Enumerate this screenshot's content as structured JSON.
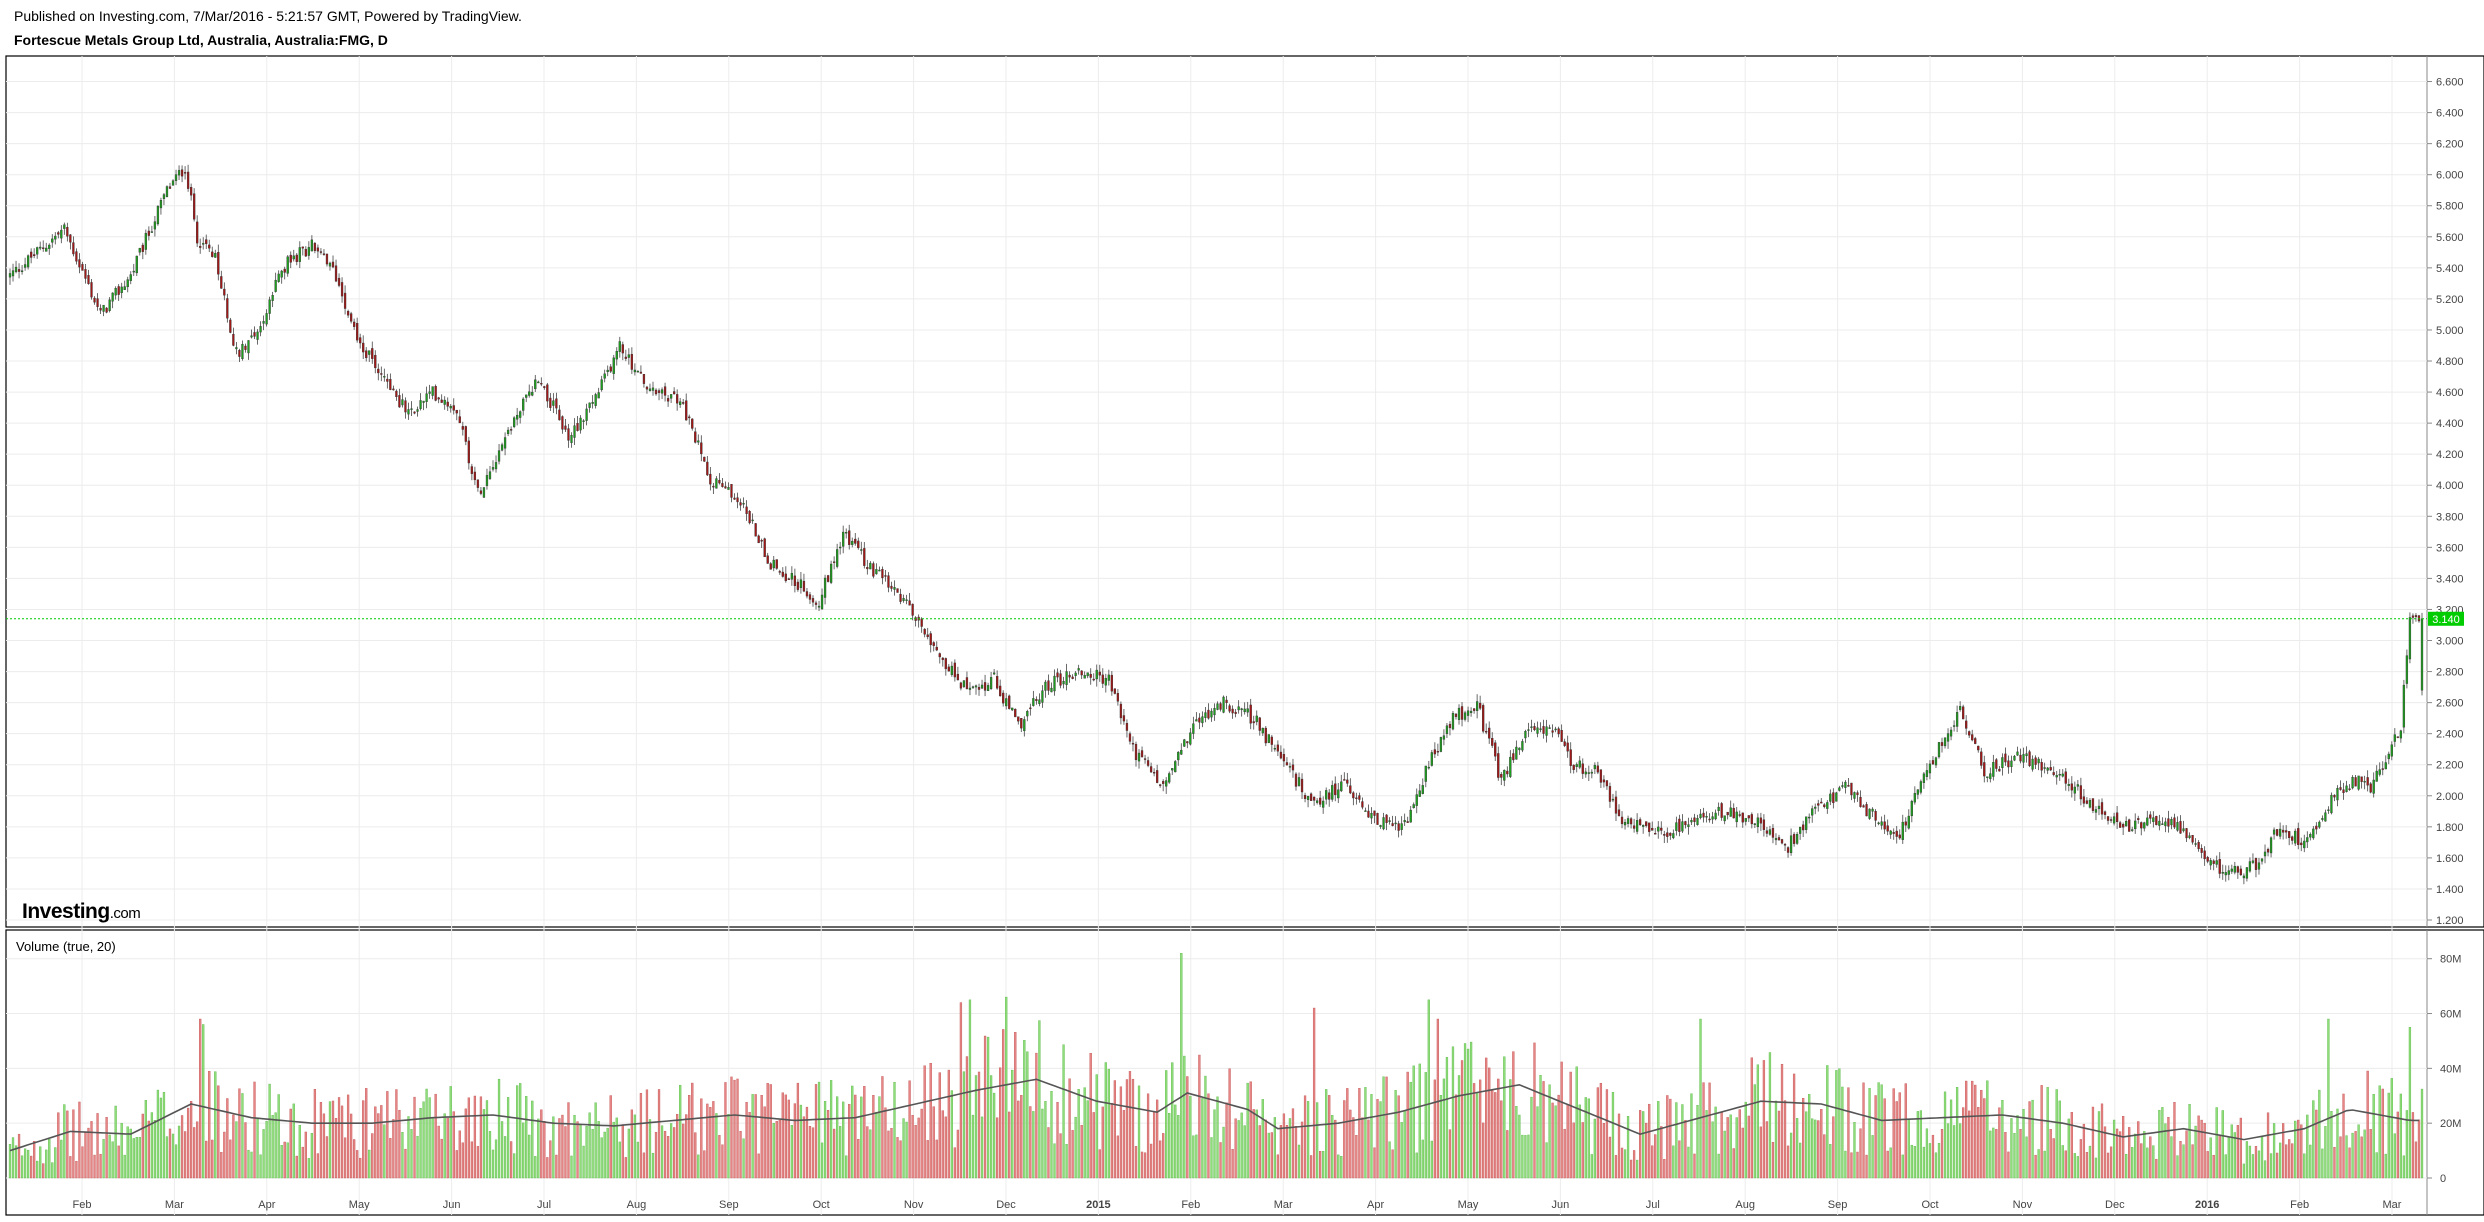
{
  "header": {
    "published": "Published on Investing.com, 7/Mar/2016 - 5:21:57 GMT, Powered by TradingView.",
    "symbol": "Fortescue Metals Group Ltd, Australia, Australia:FMG, D"
  },
  "logo": {
    "main": "Investing",
    "suffix": ".com"
  },
  "volume_panel": {
    "title": "Volume (true, 20)"
  },
  "colors": {
    "up": "#1e9e1e",
    "down": "#a01818",
    "vol_up": "#8fdc7a",
    "vol_down": "#e58585",
    "ma": "#555555",
    "last_price": "#00cc00"
  },
  "chart_data": [
    {
      "type": "candlestick",
      "ylim": [
        1.2,
        6.7
      ],
      "y_ticks": [
        "1.200",
        "1.400",
        "1.600",
        "1.800",
        "2.000",
        "2.200",
        "2.400",
        "2.600",
        "2.800",
        "3.000",
        "3.200",
        "3.400",
        "3.600",
        "3.800",
        "4.000",
        "4.200",
        "4.400",
        "4.600",
        "4.800",
        "5.000",
        "5.200",
        "5.400",
        "5.600",
        "5.800",
        "6.000",
        "6.200",
        "6.400",
        "6.600"
      ],
      "x_ticks": [
        "Feb",
        "Mar",
        "Apr",
        "May",
        "Jun",
        "Jul",
        "Aug",
        "Sep",
        "Oct",
        "Nov",
        "Dec",
        "2015",
        "Feb",
        "Mar",
        "Apr",
        "May",
        "Jun",
        "Jul",
        "Aug",
        "Sep",
        "Oct",
        "Nov",
        "Dec",
        "2016",
        "Feb",
        "Mar"
      ],
      "last_price": "3.140",
      "last_value": 3.14,
      "close_path": [
        [
          0,
          5.35
        ],
        [
          18,
          5.65
        ],
        [
          30,
          5.1
        ],
        [
          40,
          5.35
        ],
        [
          52,
          5.9
        ],
        [
          58,
          6.05
        ],
        [
          62,
          5.6
        ],
        [
          68,
          5.45
        ],
        [
          75,
          4.85
        ],
        [
          84,
          5.05
        ],
        [
          90,
          5.4
        ],
        [
          100,
          5.55
        ],
        [
          108,
          5.35
        ],
        [
          116,
          4.9
        ],
        [
          124,
          4.7
        ],
        [
          132,
          4.45
        ],
        [
          140,
          4.6
        ],
        [
          148,
          4.5
        ],
        [
          155,
          3.95
        ],
        [
          165,
          4.35
        ],
        [
          175,
          4.7
        ],
        [
          185,
          4.3
        ],
        [
          195,
          4.6
        ],
        [
          202,
          4.9
        ],
        [
          212,
          4.6
        ],
        [
          222,
          4.55
        ],
        [
          232,
          4.05
        ],
        [
          242,
          3.9
        ],
        [
          252,
          3.5
        ],
        [
          262,
          3.35
        ],
        [
          268,
          3.25
        ],
        [
          276,
          3.7
        ],
        [
          286,
          3.45
        ],
        [
          296,
          3.25
        ],
        [
          304,
          3.05
        ],
        [
          310,
          2.85
        ],
        [
          318,
          2.65
        ],
        [
          326,
          2.75
        ],
        [
          334,
          2.45
        ],
        [
          344,
          2.72
        ],
        [
          354,
          2.8
        ],
        [
          364,
          2.75
        ],
        [
          372,
          2.3
        ],
        [
          382,
          2.05
        ],
        [
          392,
          2.45
        ],
        [
          402,
          2.6
        ],
        [
          412,
          2.5
        ],
        [
          422,
          2.2
        ],
        [
          432,
          1.95
        ],
        [
          442,
          2.08
        ],
        [
          452,
          1.85
        ],
        [
          462,
          1.8
        ],
        [
          470,
          2.2
        ],
        [
          478,
          2.5
        ],
        [
          486,
          2.58
        ],
        [
          494,
          2.1
        ],
        [
          502,
          2.4
        ],
        [
          510,
          2.45
        ],
        [
          518,
          2.2
        ],
        [
          526,
          2.15
        ],
        [
          534,
          1.85
        ],
        [
          544,
          1.75
        ],
        [
          556,
          1.8
        ],
        [
          566,
          1.9
        ],
        [
          578,
          1.85
        ],
        [
          588,
          1.65
        ],
        [
          598,
          1.9
        ],
        [
          608,
          2.05
        ],
        [
          618,
          1.85
        ],
        [
          626,
          1.75
        ],
        [
          636,
          2.2
        ],
        [
          646,
          2.55
        ],
        [
          654,
          2.15
        ],
        [
          664,
          2.25
        ],
        [
          674,
          2.2
        ],
        [
          684,
          2.05
        ],
        [
          694,
          1.85
        ],
        [
          704,
          1.8
        ],
        [
          716,
          1.85
        ],
        [
          726,
          1.6
        ],
        [
          736,
          1.5
        ],
        [
          744,
          1.55
        ],
        [
          752,
          1.8
        ],
        [
          760,
          1.7
        ],
        [
          768,
          1.95
        ],
        [
          776,
          2.1
        ],
        [
          782,
          2.05
        ],
        [
          788,
          2.3
        ],
        [
          792,
          2.45
        ],
        [
          795,
          3.14
        ]
      ],
      "volume": {
        "ylim": [
          0,
          85
        ],
        "y_ticks": [
          "0",
          "20M",
          "40M",
          "60M",
          "80M"
        ],
        "y_tick_values": [
          0,
          20,
          40,
          60,
          80
        ],
        "ma_path": [
          [
            0,
            10
          ],
          [
            20,
            17
          ],
          [
            40,
            16
          ],
          [
            60,
            27
          ],
          [
            80,
            22
          ],
          [
            100,
            20
          ],
          [
            120,
            20
          ],
          [
            140,
            22
          ],
          [
            160,
            23
          ],
          [
            180,
            20
          ],
          [
            200,
            19
          ],
          [
            220,
            21
          ],
          [
            240,
            23
          ],
          [
            260,
            21
          ],
          [
            280,
            22
          ],
          [
            300,
            27
          ],
          [
            320,
            32
          ],
          [
            340,
            36
          ],
          [
            360,
            28
          ],
          [
            380,
            24
          ],
          [
            390,
            31
          ],
          [
            410,
            25
          ],
          [
            420,
            18
          ],
          [
            440,
            20
          ],
          [
            460,
            24
          ],
          [
            480,
            30
          ],
          [
            500,
            34
          ],
          [
            520,
            25
          ],
          [
            540,
            16
          ],
          [
            560,
            22
          ],
          [
            580,
            28
          ],
          [
            600,
            27
          ],
          [
            620,
            21
          ],
          [
            640,
            22
          ],
          [
            660,
            23
          ],
          [
            680,
            20
          ],
          [
            700,
            15
          ],
          [
            720,
            18
          ],
          [
            740,
            14
          ],
          [
            760,
            18
          ],
          [
            775,
            25
          ],
          [
            795,
            21
          ]
        ],
        "spikes": [
          [
            63,
            58
          ],
          [
            64,
            56
          ],
          [
            315,
            64
          ],
          [
            318,
            65
          ],
          [
            330,
            66
          ],
          [
            388,
            82
          ],
          [
            432,
            62
          ],
          [
            470,
            65
          ],
          [
            473,
            58
          ],
          [
            560,
            58
          ],
          [
            768,
            58
          ],
          [
            795,
            55
          ]
        ]
      }
    }
  ]
}
